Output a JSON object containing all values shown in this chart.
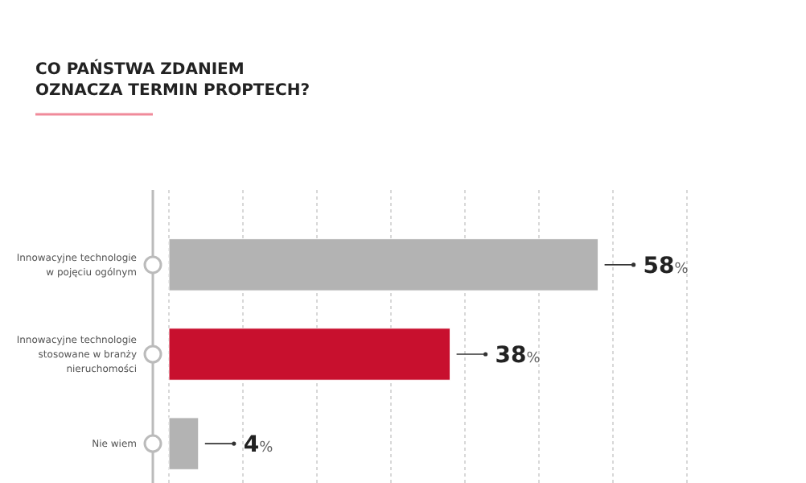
{
  "chart_data": {
    "type": "bar",
    "orientation": "horizontal",
    "title": "CO PAŃSTWA ZDANIEM\nOZNACZA TERMIN PROPTECH?",
    "categories": [
      "Innowacyjne technologie\nw pojęciu ogólnym",
      "Innowacyjne technologie\nstosowane w branży\nnieruchomości",
      "Nie wiem"
    ],
    "values": [
      58,
      38,
      4
    ],
    "colors": [
      "#b3b3b3",
      "#c8102e",
      "#b3b3b3"
    ],
    "value_labels": [
      "58%",
      "38%",
      "4%"
    ],
    "xlim": [
      0,
      70
    ],
    "xticks": [
      {
        "value": 0,
        "label": null
      },
      {
        "value": 10,
        "label": null
      },
      {
        "value": 20,
        "label": null
      },
      {
        "value": 30,
        "label": null
      },
      {
        "value": 40,
        "label": null
      },
      {
        "value": 50,
        "label": null
      },
      {
        "value": 60,
        "label": null
      },
      {
        "value": 70,
        "label": null
      }
    ],
    "tick_labels": "y",
    "grid": "x"
  }
}
